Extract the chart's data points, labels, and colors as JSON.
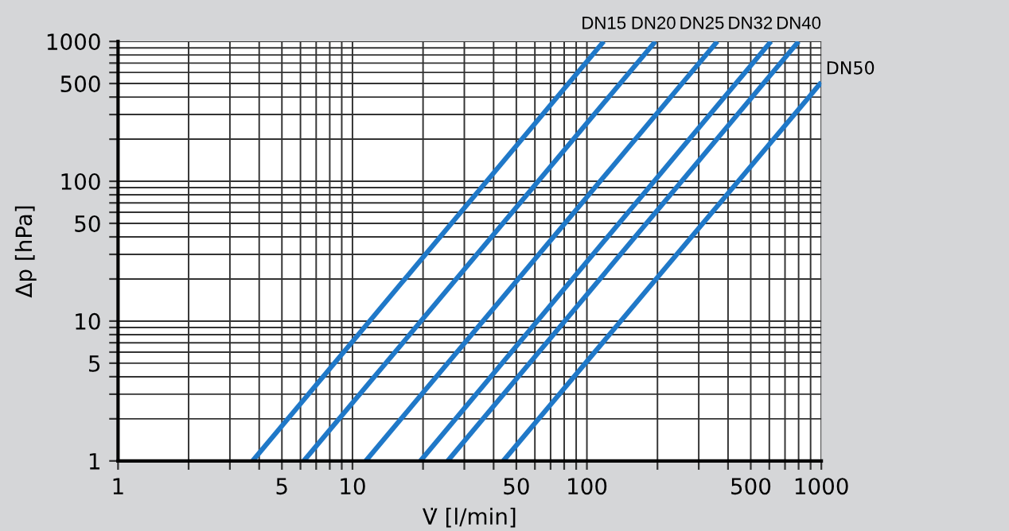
{
  "chart_data": {
    "type": "line",
    "xlabel": "V̇ [l/min]",
    "ylabel": "Δp [hPa]",
    "log": "xy",
    "grid": true,
    "legend": false,
    "marker": "none",
    "line_style": "solid",
    "xlim": [
      1,
      1000
    ],
    "ylim": [
      1,
      1000
    ],
    "xticks": [
      1,
      {
        "value": 2,
        "label": null
      },
      {
        "value": 3,
        "label": null
      },
      {
        "value": 4,
        "label": null
      },
      5,
      {
        "value": 6,
        "label": null
      },
      {
        "value": 7,
        "label": null
      },
      {
        "value": 8,
        "label": null
      },
      {
        "value": 9,
        "label": null
      },
      10,
      {
        "value": 20,
        "label": null
      },
      {
        "value": 30,
        "label": null
      },
      {
        "value": 40,
        "label": null
      },
      50,
      {
        "value": 60,
        "label": null
      },
      {
        "value": 70,
        "label": null
      },
      {
        "value": 80,
        "label": null
      },
      {
        "value": 90,
        "label": null
      },
      100,
      {
        "value": 200,
        "label": null
      },
      {
        "value": 300,
        "label": null
      },
      {
        "value": 400,
        "label": null
      },
      500,
      {
        "value": 600,
        "label": null
      },
      {
        "value": 700,
        "label": null
      },
      {
        "value": 800,
        "label": null
      },
      {
        "value": 900,
        "label": null
      },
      1000
    ],
    "yticks": [
      1,
      {
        "value": 2,
        "label": null
      },
      {
        "value": 3,
        "label": null
      },
      {
        "value": 4,
        "label": null
      },
      5,
      {
        "value": 6,
        "label": null
      },
      {
        "value": 7,
        "label": null
      },
      {
        "value": 8,
        "label": null
      },
      {
        "value": 9,
        "label": null
      },
      10,
      {
        "value": 20,
        "label": null
      },
      {
        "value": 30,
        "label": null
      },
      {
        "value": 40,
        "label": null
      },
      50,
      {
        "value": 60,
        "label": null
      },
      {
        "value": 70,
        "label": null
      },
      {
        "value": 80,
        "label": null
      },
      {
        "value": 90,
        "label": null
      },
      100,
      {
        "value": 200,
        "label": null
      },
      {
        "value": 300,
        "label": null
      },
      {
        "value": 400,
        "label": null
      },
      500,
      {
        "value": 600,
        "label": null
      },
      {
        "value": 700,
        "label": null
      },
      {
        "value": 800,
        "label": null
      },
      {
        "value": 900,
        "label": null
      },
      1000
    ],
    "series": [
      {
        "name": "DN15",
        "color": "#1f78c8",
        "x": [
          3.75,
          118
        ],
        "values": [
          1,
          1000
        ]
      },
      {
        "name": "DN20",
        "color": "#1f78c8",
        "x": [
          6.2,
          196
        ],
        "values": [
          1,
          1000
        ]
      },
      {
        "name": "DN25",
        "color": "#1f78c8",
        "x": [
          11.4,
          360
        ],
        "values": [
          1,
          1000
        ]
      },
      {
        "name": "DN32",
        "color": "#1f78c8",
        "x": [
          19.5,
          610
        ],
        "values": [
          1,
          1000
        ]
      },
      {
        "name": "DN40",
        "color": "#1f78c8",
        "x": [
          25.5,
          800
        ],
        "values": [
          1,
          1000
        ]
      },
      {
        "name": "DN50",
        "color": "#1f78c8",
        "x": [
          44,
          1000
        ],
        "values": [
          1,
          510
        ]
      }
    ]
  }
}
